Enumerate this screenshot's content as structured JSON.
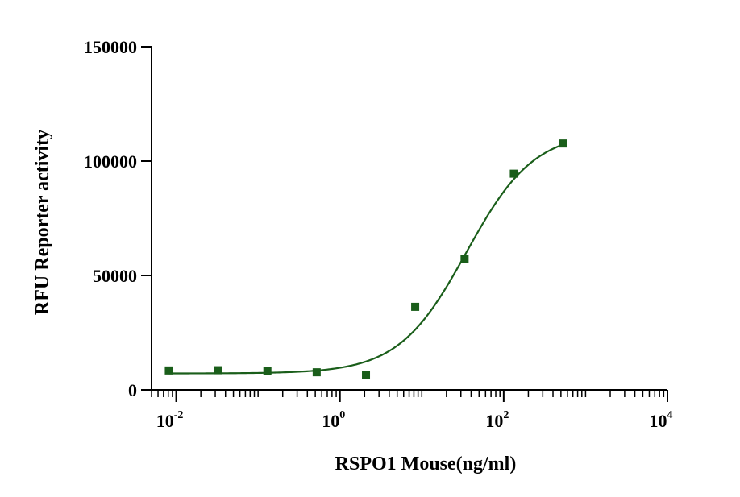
{
  "chart_data": {
    "type": "scatter",
    "title": "",
    "xlabel": "RSPO1 Mouse(ng/ml)",
    "ylabel": "RFU Reporter activity",
    "xscale": "log",
    "xlim": [
      0.005,
      10000
    ],
    "ylim": [
      0,
      150000
    ],
    "grid": false,
    "x_ticks": [
      {
        "value": 0.01,
        "base": "10",
        "exp": "-2"
      },
      {
        "value": 1,
        "base": "10",
        "exp": "0"
      },
      {
        "value": 100,
        "base": "10",
        "exp": "2"
      },
      {
        "value": 10000,
        "base": "10",
        "exp": "4"
      }
    ],
    "y_ticks": [
      {
        "value": 0,
        "label": "0"
      },
      {
        "value": 50000,
        "label": "50000"
      },
      {
        "value": 100000,
        "label": "100000"
      },
      {
        "value": 150000,
        "label": "150000"
      }
    ],
    "series": [
      {
        "color": "#1a5e1a",
        "marker": "square",
        "x": [
          0.00813,
          0.0325,
          0.13,
          0.52,
          2.08,
          8.3,
          33.3,
          133,
          533
        ],
        "y": [
          8500,
          8600,
          8400,
          7700,
          6600,
          36300,
          57200,
          94500,
          107700
        ],
        "fit": {
          "model": "4PL",
          "bottom": 7200,
          "top": 113000,
          "ec50": 35,
          "hill": 1.05,
          "x_range": [
            0.00813,
            533
          ]
        }
      }
    ]
  }
}
